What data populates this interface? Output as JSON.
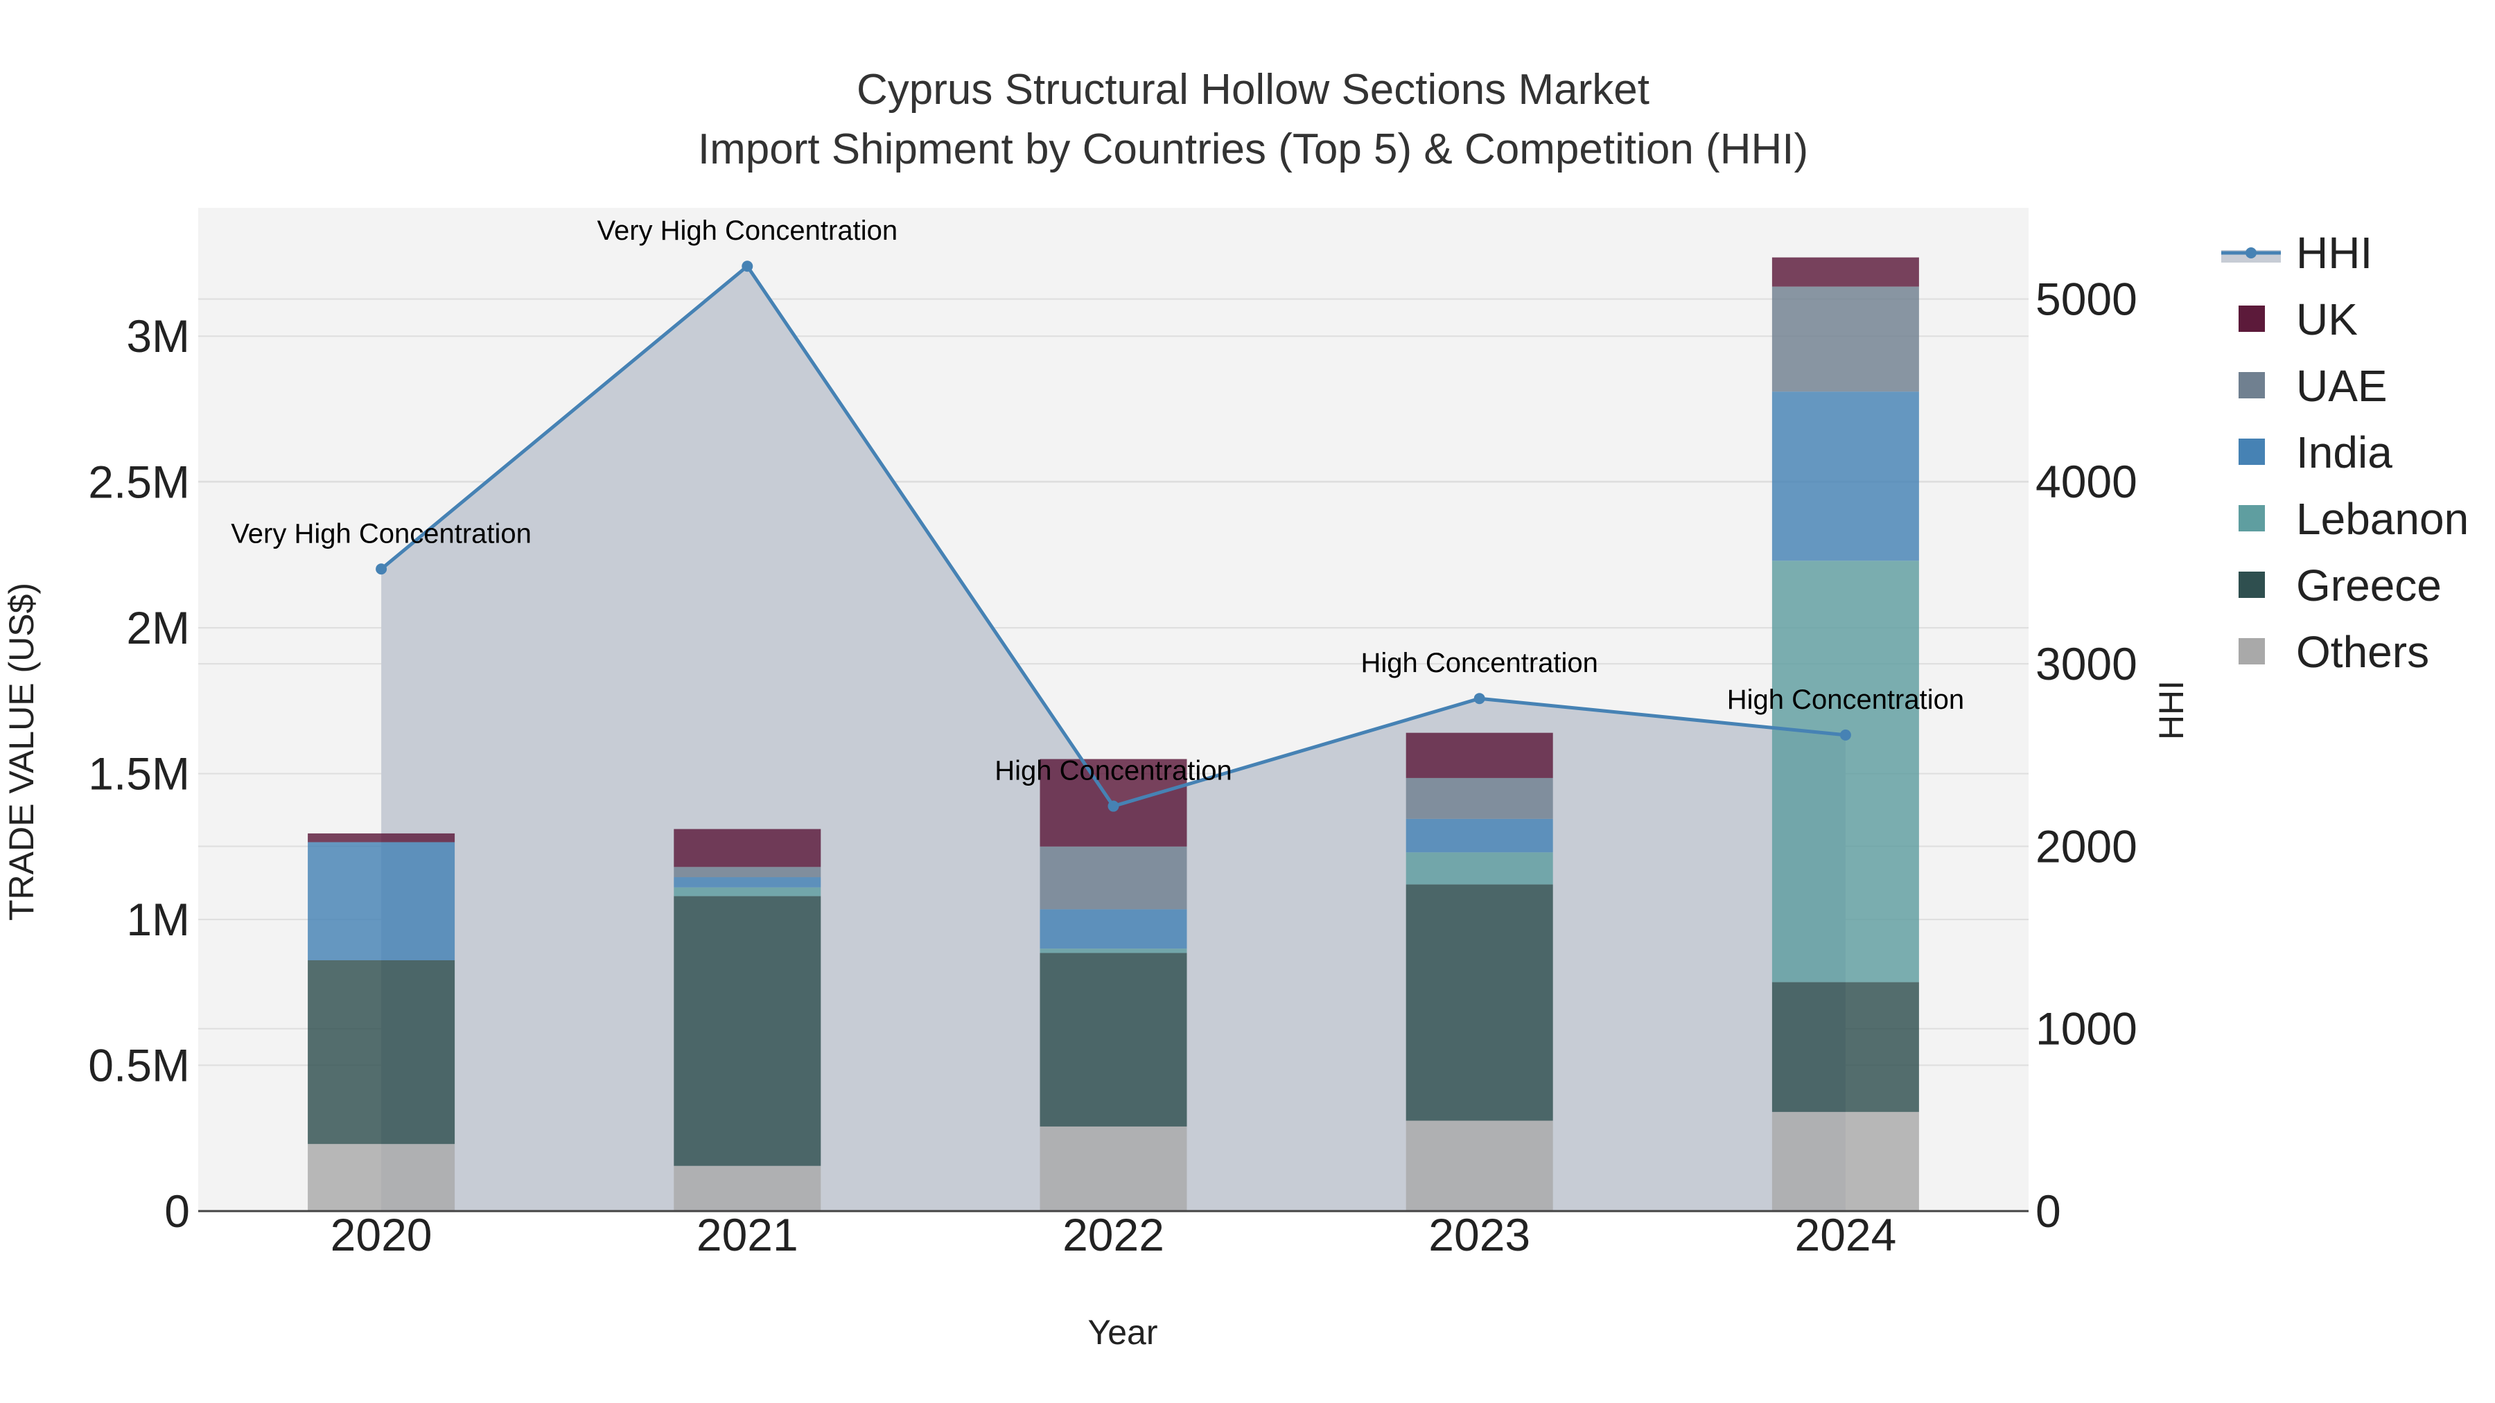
{
  "chart_data": {
    "type": "bar",
    "title_line1": "Cyprus Structural Hollow Sections Market",
    "title_line2": "Import Shipment by Countries (Top 5) & Competition (HHI)",
    "xlabel": "Year",
    "ylabel": "TRADE VALUE (US$)",
    "y2label": "HHI",
    "categories": [
      "2020",
      "2021",
      "2022",
      "2023",
      "2024"
    ],
    "ylim": [
      0,
      3440000
    ],
    "y2lim": [
      0,
      5500
    ],
    "yticks": [
      {
        "value": 0,
        "label": "0"
      },
      {
        "value": 500000,
        "label": "0.5M"
      },
      {
        "value": 1000000,
        "label": "1M"
      },
      {
        "value": 1500000,
        "label": "1.5M"
      },
      {
        "value": 2000000,
        "label": "2M"
      },
      {
        "value": 2500000,
        "label": "2.5M"
      },
      {
        "value": 3000000,
        "label": "3M"
      }
    ],
    "y2ticks": [
      {
        "value": 0,
        "label": "0"
      },
      {
        "value": 1000,
        "label": "1000"
      },
      {
        "value": 2000,
        "label": "2000"
      },
      {
        "value": 3000,
        "label": "3000"
      },
      {
        "value": 4000,
        "label": "4000"
      },
      {
        "value": 5000,
        "label": "5000"
      }
    ],
    "series": [
      {
        "name": "Others",
        "color": "#a9a9a9",
        "values": [
          230000,
          155000,
          290000,
          310000,
          340000
        ]
      },
      {
        "name": "Greece",
        "color": "#2f4f4f",
        "values": [
          630000,
          925000,
          595000,
          810000,
          445000
        ]
      },
      {
        "name": "Lebanon",
        "color": "#5f9ea0",
        "values": [
          0,
          30000,
          15000,
          110000,
          1445000
        ]
      },
      {
        "name": "India",
        "color": "#4682b4",
        "values": [
          405000,
          35000,
          135000,
          115000,
          580000
        ]
      },
      {
        "name": "UAE",
        "color": "#708090",
        "values": [
          0,
          35000,
          215000,
          140000,
          360000
        ]
      },
      {
        "name": "UK",
        "color": "#5c1a3a",
        "values": [
          30000,
          130000,
          300000,
          155000,
          100000
        ]
      }
    ],
    "hhi": {
      "name": "HHI",
      "color": "#4682b4",
      "values": [
        3520,
        5180,
        2220,
        2810,
        2610
      ],
      "labels": [
        "Very High Concentration",
        "Very High Concentration",
        "High Concentration",
        "High Concentration",
        "High Concentration"
      ]
    },
    "legend": [
      "HHI",
      "UK",
      "UAE",
      "India",
      "Lebanon",
      "Greece",
      "Others"
    ],
    "legend_position": "right",
    "grid": true
  }
}
